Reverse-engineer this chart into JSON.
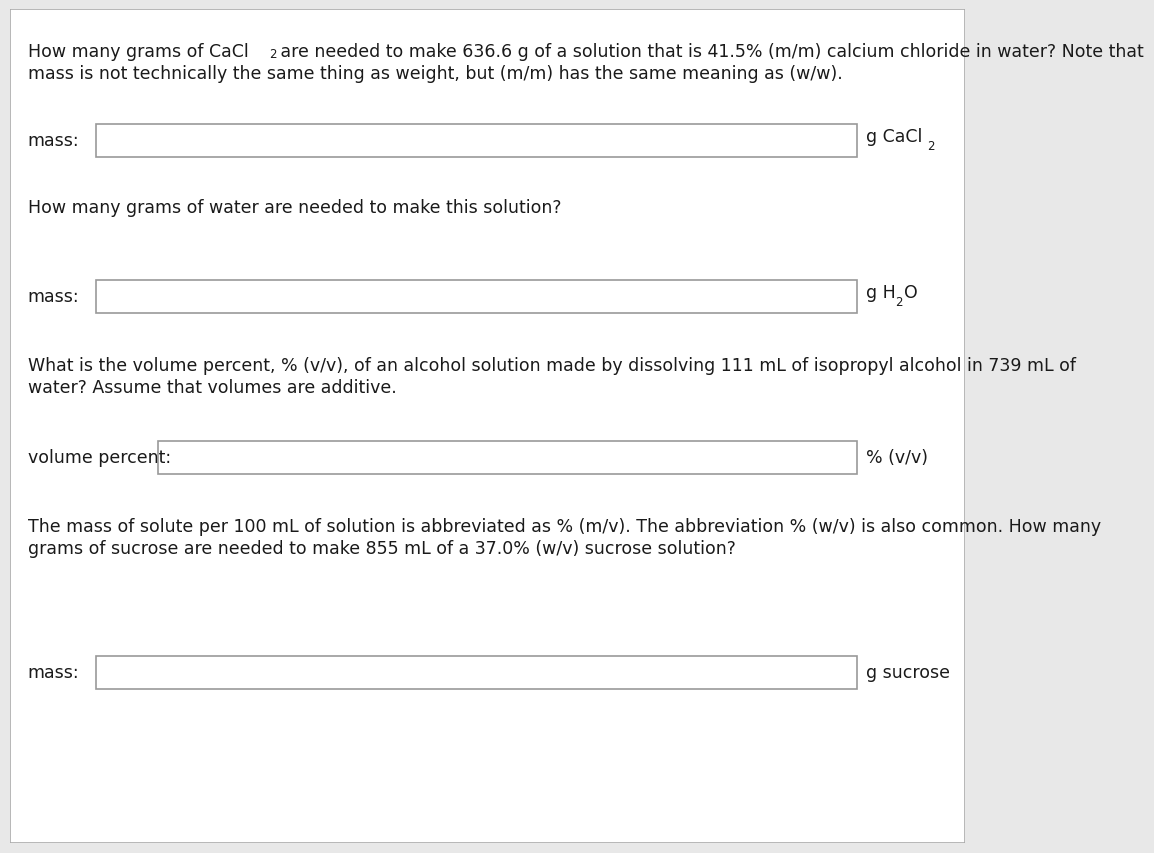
{
  "bg_color": "#e8e8e8",
  "content_bg": "#ffffff",
  "border_color": "#aaaaaa",
  "text_color": "#1a1a1a",
  "box_border_color": "#999999",
  "q1_line1": "How many grams of CaCl",
  "q1_cacl_sub": "2",
  "q1_line1_rest": " are needed to make 636.6 g of a solution that is 41.5% (m/m) calcium chloride in water? Note that",
  "q1_line2": "mass is not technically the same thing as weight, but (m/m) has the same meaning as (w/w).",
  "label1": "mass:",
  "unit1_pre": "g CaCl",
  "unit1_sub": "2",
  "q2": "How many grams of water are needed to make this solution?",
  "label2": "mass:",
  "unit2_pre": "g H",
  "unit2_sub": "2",
  "unit2_post": "O",
  "q3_line1": "What is the volume percent, % (v/v), of an alcohol solution made by dissolving 111 mL of isopropyl alcohol in 739 mL of",
  "q3_line2": "water? Assume that volumes are additive.",
  "label3": "volume percent:",
  "unit3": "% (v/v)",
  "q4_line1": "The mass of solute per 100 mL of solution is abbreviated as % (m/v). The abbreviation % (w/v) is also common. How many",
  "q4_line2": "grams of sucrose are needed to make 855 mL of a 37.0% (w/v) sucrose solution?",
  "label4": "mass:",
  "unit4": "g sucrose",
  "fs": 12.5,
  "fs_sub": 8.5
}
